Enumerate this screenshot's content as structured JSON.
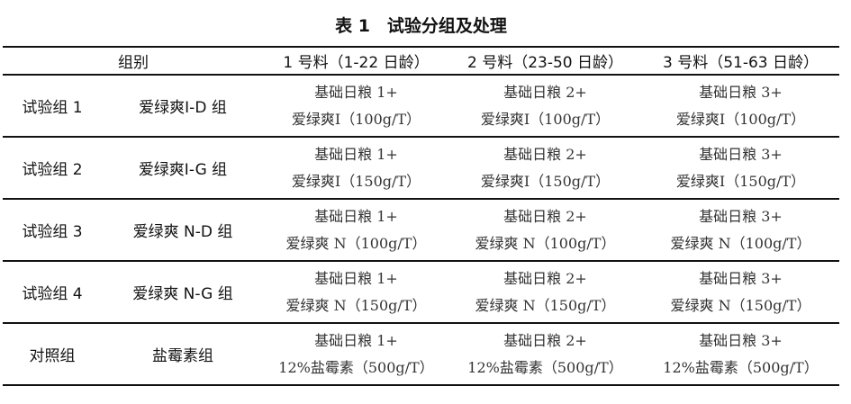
{
  "title": "表 1　试验分组及处理",
  "header": {
    "group": "组别",
    "feed1": "1 号料（1-22 日龄）",
    "feed2": "2 号料（23-50 日龄）",
    "feed3": "3 号料（51-63 日龄）"
  },
  "rows": [
    {
      "id": "试验组 1",
      "name": "爱绿爽Ⅰ-D 组",
      "cells": [
        {
          "line1": "基础日粮 1+",
          "line2": "爱绿爽Ⅰ（100g/T）"
        },
        {
          "line1": "基础日粮 2+",
          "line2": "爱绿爽Ⅰ（100g/T）"
        },
        {
          "line1": "基础日粮 3+",
          "line2": "爱绿爽Ⅰ（100g/T）"
        }
      ]
    },
    {
      "id": "试验组 2",
      "name": "爱绿爽Ⅰ-G 组",
      "cells": [
        {
          "line1": "基础日粮 1+",
          "line2": "爱绿爽Ⅰ（150g/T）"
        },
        {
          "line1": "基础日粮 2+",
          "line2": "爱绿爽Ⅰ（150g/T）"
        },
        {
          "line1": "基础日粮 3+",
          "line2": "爱绿爽Ⅰ（150g/T）"
        }
      ]
    },
    {
      "id": "试验组 3",
      "name": "爱绿爽 N-D 组",
      "cells": [
        {
          "line1": "基础日粮 1+",
          "line2": "爱绿爽 N（100g/T）"
        },
        {
          "line1": "基础日粮 2+",
          "line2": "爱绿爽 N（100g/T）"
        },
        {
          "line1": "基础日粮 3+",
          "line2": "爱绿爽 N（100g/T）"
        }
      ]
    },
    {
      "id": "试验组 4",
      "name": "爱绿爽 N-G 组",
      "cells": [
        {
          "line1": "基础日粮 1+",
          "line2": "爱绿爽 N（150g/T）"
        },
        {
          "line1": "基础日粮 2+",
          "line2": "爱绿爽 N（150g/T）"
        },
        {
          "line1": "基础日粮 3+",
          "line2": "爱绿爽 N（150g/T）"
        }
      ]
    },
    {
      "id": "对照组",
      "name": "盐霉素组",
      "cells": [
        {
          "line1": "基础日粮 1+",
          "line2": "12%盐霉素（500g/T）"
        },
        {
          "line1": "基础日粮 2+",
          "line2": "12%盐霉素（500g/T）"
        },
        {
          "line1": "基础日粮 3+",
          "line2": "12%盐霉素（500g/T）"
        }
      ]
    }
  ]
}
